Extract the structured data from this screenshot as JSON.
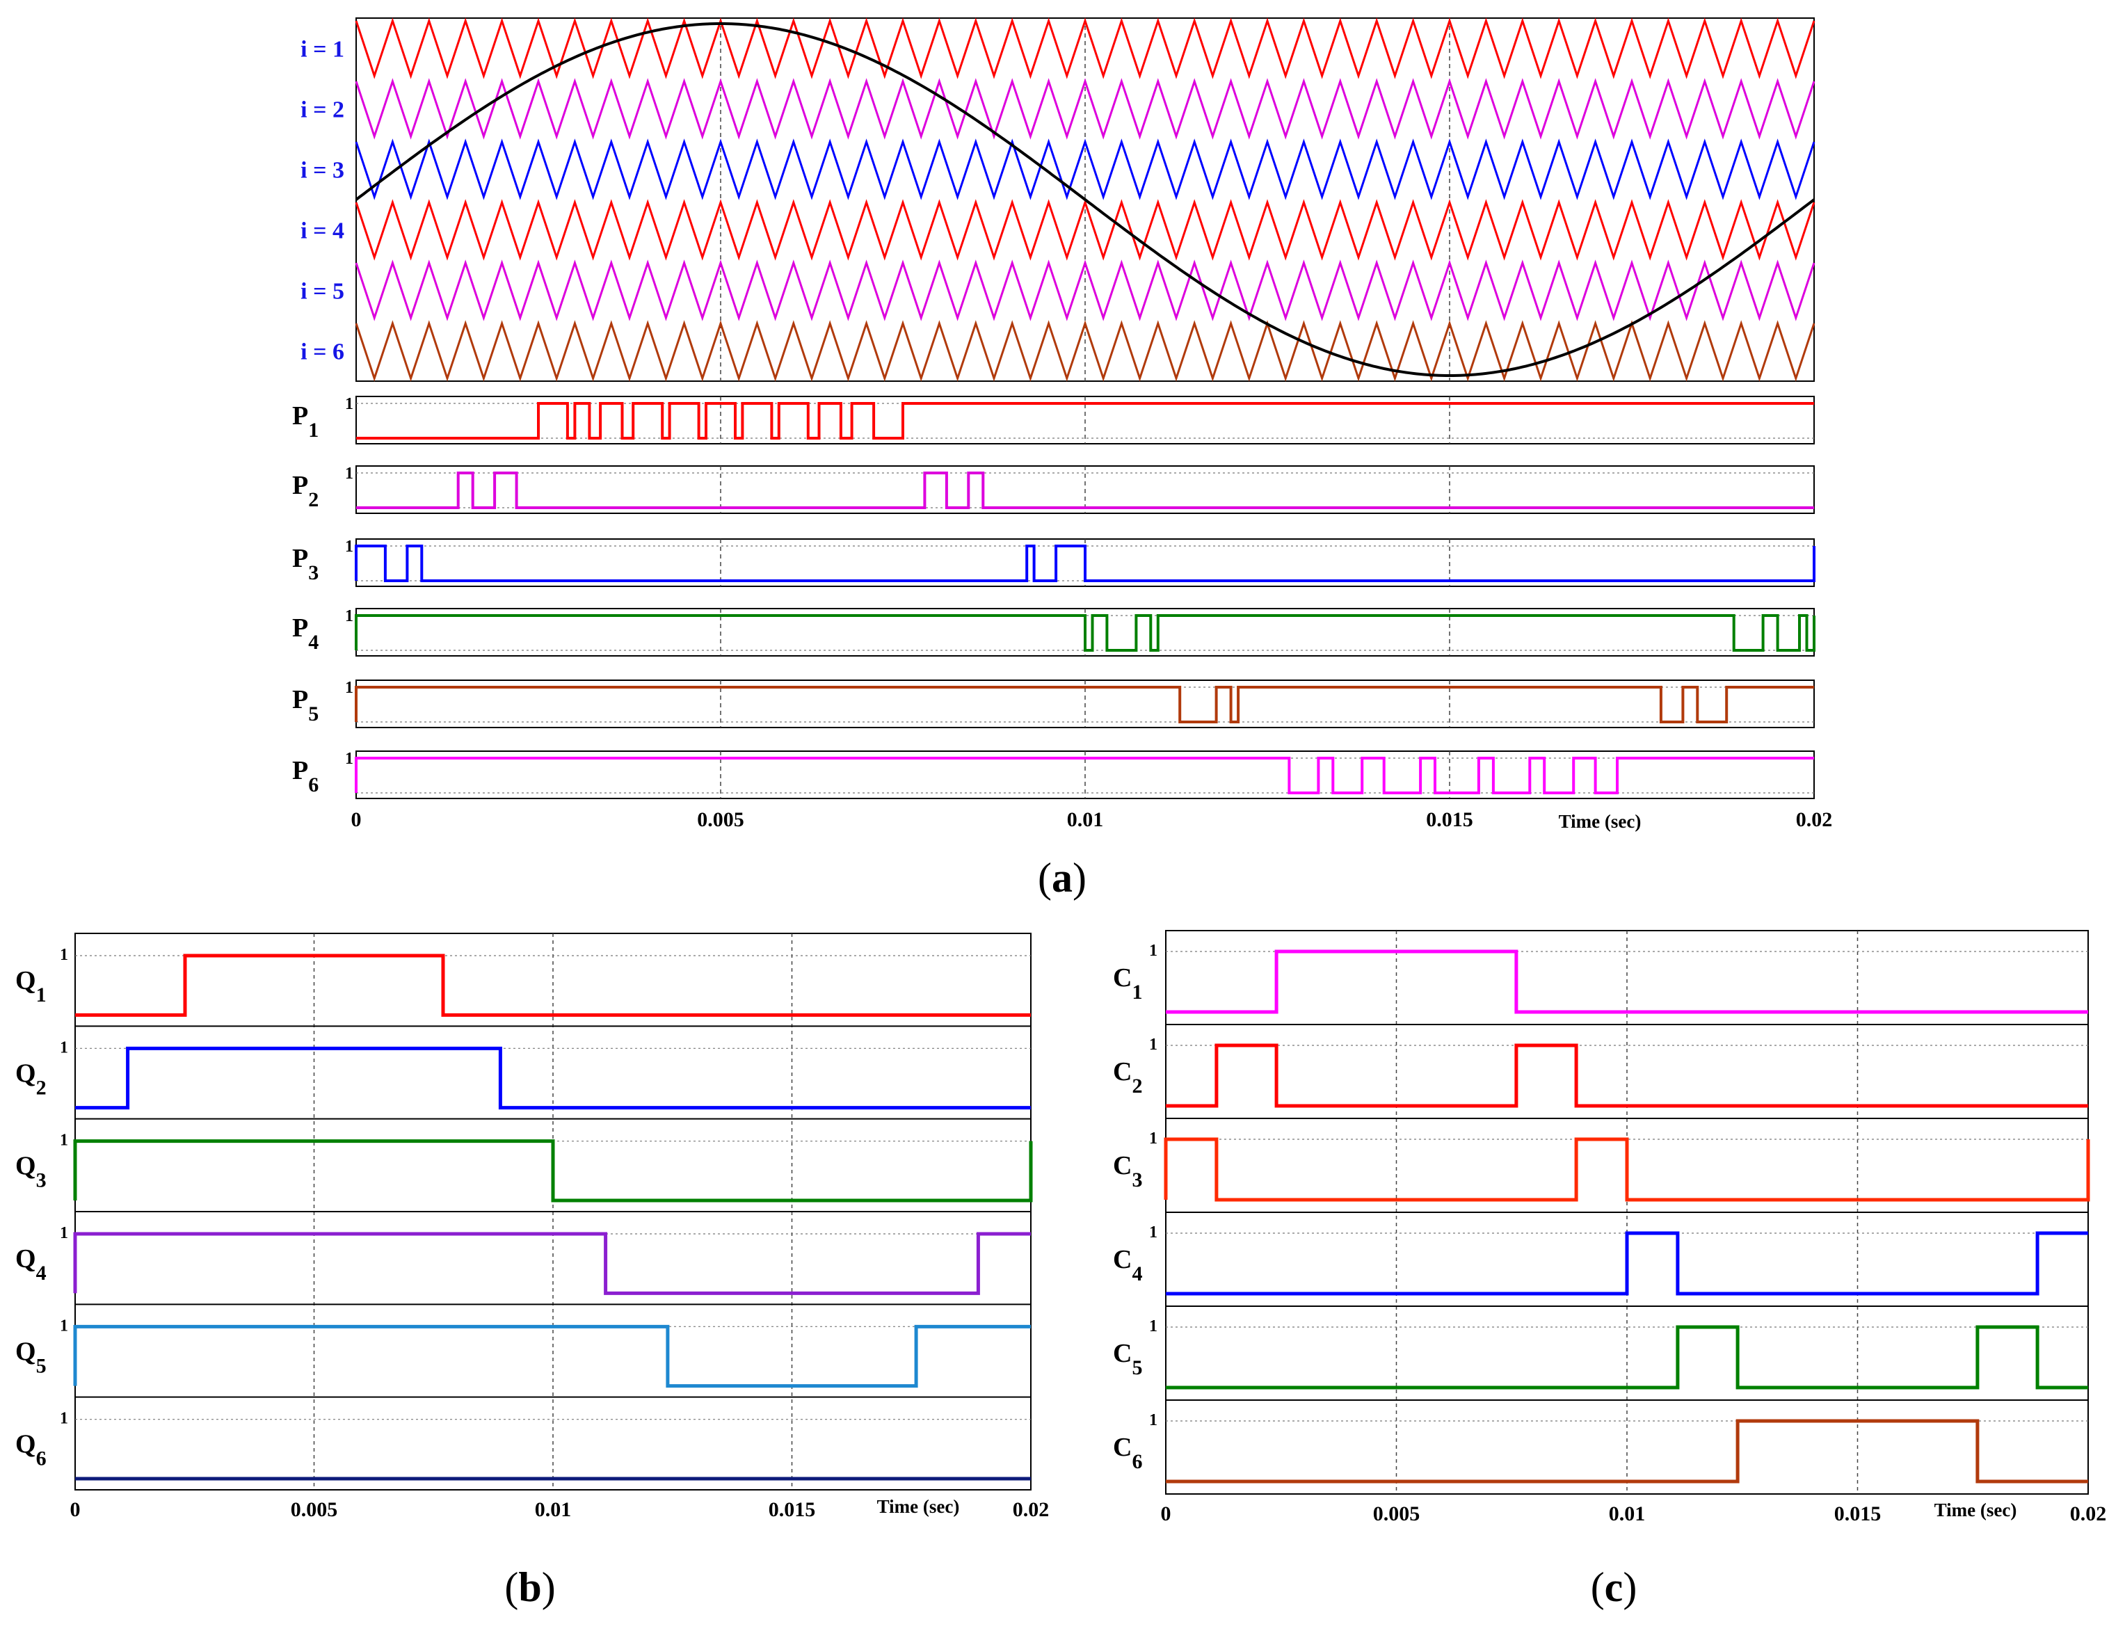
{
  "figure_captions": [
    {
      "pre": "(",
      "letter": "a",
      "post": ")"
    },
    {
      "pre": "(",
      "letter": "b",
      "post": ")"
    },
    {
      "pre": "(",
      "letter": "c",
      "post": ")"
    }
  ],
  "chart_data": [
    {
      "id": "a",
      "type": "line",
      "title": "",
      "xlabel": "Time (sec)",
      "xlim": [
        0,
        0.02
      ],
      "x_ticks": [
        "0",
        "0.005",
        "0.01",
        "0.015",
        "0.02"
      ],
      "carriers": {
        "labels": [
          "i = 1",
          "i = 2",
          "i = 3",
          "i = 4",
          "i = 5",
          "i = 6"
        ],
        "colors": [
          "#ff0000",
          "#dd00dd",
          "#0000ff",
          "#ff0000",
          "#dd00dd",
          "#b13a0c"
        ],
        "label_color": "#1515e6",
        "teeth_per_period": 40,
        "reference": {
          "name": "sinusoidal reference",
          "color": "#000000",
          "frequency_hz": 50,
          "amplitude": 1.0
        }
      },
      "signals": [
        {
          "name": "P",
          "sub": "1",
          "level_label": "1",
          "color": "#ff0000",
          "edges": [
            0.0025,
            0.0029,
            0.003,
            0.0032,
            0.00335,
            0.00365,
            0.0038,
            0.0042,
            0.0043,
            0.0047,
            0.0048,
            0.0052,
            0.0053,
            0.0057,
            0.0058,
            0.0062,
            0.00635,
            0.00665,
            0.0068,
            0.0071,
            0.0075
          ]
        },
        {
          "name": "P",
          "sub": "2",
          "level_label": "1",
          "color": "#dd00dd",
          "edges": [
            0.0014,
            0.0016,
            0.0019,
            0.0022,
            0.0078,
            0.0081,
            0.0084,
            0.0086
          ]
        },
        {
          "name": "P",
          "sub": "3",
          "level_label": "1",
          "color": "#0000ff",
          "edges": [
            0,
            0.0004,
            0.0007,
            0.0009,
            0.0092,
            0.0093,
            0.0096,
            0.01,
            0.02
          ]
        },
        {
          "name": "P",
          "sub": "4",
          "level_label": "1",
          "color": "#008000",
          "edges": [
            0.0,
            0.01,
            0.0101,
            0.0103,
            0.0107,
            0.0109,
            0.011,
            0.0189,
            0.0193,
            0.0195,
            0.0198,
            0.0199,
            0.02
          ]
        },
        {
          "name": "P",
          "sub": "5",
          "level_label": "1",
          "color": "#b13a0c",
          "edges": [
            0.0,
            0.0113,
            0.0118,
            0.012,
            0.0121,
            0.0179,
            0.0182,
            0.0184,
            0.0188
          ]
        },
        {
          "name": "P",
          "sub": "6",
          "level_label": "1",
          "color": "#ff00ff",
          "edges": [
            0.0,
            0.0128,
            0.0132,
            0.0134,
            0.0138,
            0.0141,
            0.0146,
            0.0148,
            0.0154,
            0.0156,
            0.0161,
            0.0163,
            0.0167,
            0.017,
            0.0173
          ]
        }
      ]
    },
    {
      "id": "b",
      "type": "line",
      "title": "",
      "xlabel": "Time (sec)",
      "xlim": [
        0,
        0.02
      ],
      "x_ticks": [
        "0",
        "0.005",
        "0.01",
        "0.015",
        "0.02"
      ],
      "signals": [
        {
          "name": "Q",
          "sub": "1",
          "level_label": "1",
          "color": "#ff0000",
          "edges": [
            0.0023,
            0.0077
          ]
        },
        {
          "name": "Q",
          "sub": "2",
          "level_label": "1",
          "color": "#0000ff",
          "edges": [
            0.0011,
            0.0089
          ]
        },
        {
          "name": "Q",
          "sub": "3",
          "level_label": "1",
          "color": "#008000",
          "edges": [
            0.0,
            0.01,
            0.02
          ]
        },
        {
          "name": "Q",
          "sub": "4",
          "level_label": "1",
          "color": "#8b1fd0",
          "edges": [
            0.0,
            0.0111,
            0.0189
          ]
        },
        {
          "name": "Q",
          "sub": "5",
          "level_label": "1",
          "color": "#1e88d0",
          "edges": [
            0.0,
            0.0124,
            0.0176
          ]
        },
        {
          "name": "Q",
          "sub": "6",
          "level_label": "1",
          "color": "#0d1b7a",
          "edges": []
        }
      ]
    },
    {
      "id": "c",
      "type": "line",
      "title": "",
      "xlabel": "Time (sec)",
      "xlim": [
        0,
        0.02
      ],
      "x_ticks": [
        "0",
        "0.005",
        "0.01",
        "0.015",
        "0.02"
      ],
      "signals": [
        {
          "name": "C",
          "sub": "1",
          "level_label": "1",
          "color": "#ff00ff",
          "edges": [
            0.0024,
            0.0076
          ]
        },
        {
          "name": "C",
          "sub": "2",
          "level_label": "1",
          "color": "#ff0000",
          "edges": [
            0.0011,
            0.0024,
            0.0076,
            0.0089
          ]
        },
        {
          "name": "C",
          "sub": "3",
          "level_label": "1",
          "color": "#ff2a00",
          "edges": [
            0.0,
            0.0011,
            0.0089,
            0.01,
            0.02
          ]
        },
        {
          "name": "C",
          "sub": "4",
          "level_label": "1",
          "color": "#0000ff",
          "edges": [
            0.01,
            0.0111,
            0.0189
          ]
        },
        {
          "name": "C",
          "sub": "5",
          "level_label": "1",
          "color": "#008000",
          "edges": [
            0.0111,
            0.0124,
            0.0176,
            0.0189
          ]
        },
        {
          "name": "C",
          "sub": "6",
          "level_label": "1",
          "color": "#b13a0c",
          "edges": [
            0.0124,
            0.0176
          ]
        }
      ]
    }
  ]
}
